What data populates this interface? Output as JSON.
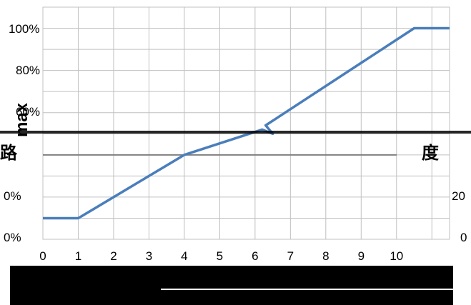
{
  "chart_data": {
    "type": "line",
    "title": "",
    "ylabel_visible": "max",
    "xlabel": "",
    "x_ticks": [
      "0",
      "1",
      "2",
      "3",
      "4",
      "5",
      "6",
      "7",
      "8",
      "9",
      "10"
    ],
    "y_ticks": [
      "100%",
      "80%",
      "60%"
    ],
    "y_ticks_partial": [
      "0%",
      "0%"
    ],
    "right_axis_ticks_partial": [
      "20",
      "0"
    ],
    "xlim": [
      0,
      11.5
    ],
    "ylim": [
      0,
      110
    ],
    "grid": true,
    "series": [
      {
        "color": "#4a7ebb",
        "points": [
          [
            0,
            10
          ],
          [
            1,
            10
          ],
          [
            4,
            40
          ],
          [
            6.2,
            52
          ],
          [
            6.5,
            50
          ],
          [
            6.3,
            54
          ],
          [
            10.5,
            100
          ],
          [
            11.5,
            100
          ]
        ]
      }
    ],
    "fragments": [
      "路",
      "度"
    ],
    "colors": {
      "line": "#4a7ebb",
      "grid": "#c0c0c0",
      "band": "#000000"
    }
  }
}
